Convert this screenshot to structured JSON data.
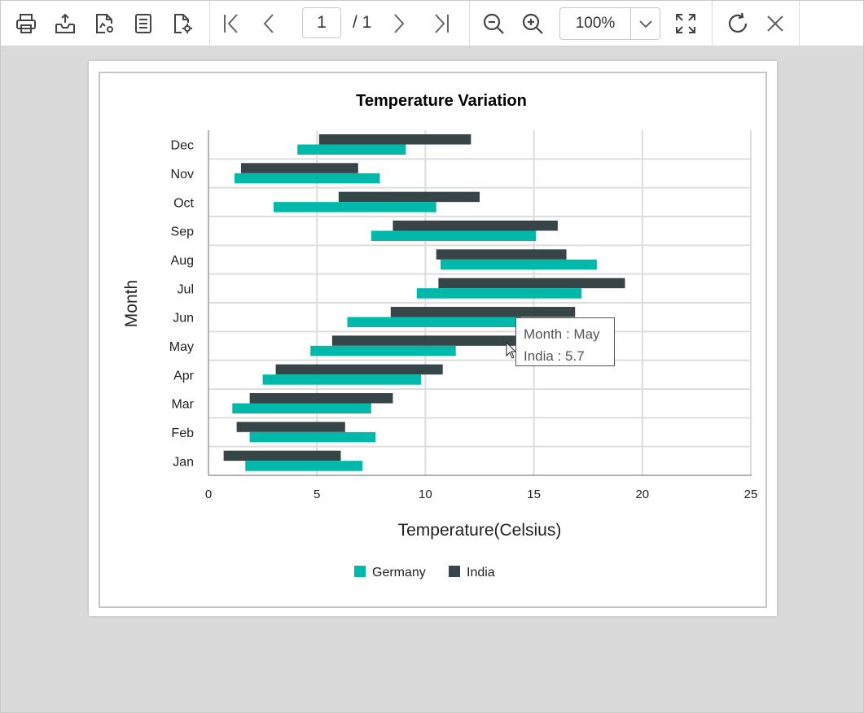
{
  "toolbar": {
    "print": "print-icon",
    "export": "export-icon",
    "parameters": "file-settings-icon",
    "document_map": "document-list-icon",
    "page_setup": "page-settings-icon",
    "first_page": "first-page-icon",
    "prev_page": "previous-page-icon",
    "current_page": "1",
    "total_pages": "/ 1",
    "next_page": "next-page-icon",
    "last_page": "last-page-icon",
    "zoom_out": "zoom-out-icon",
    "zoom_in": "zoom-in-icon",
    "zoom_value": "100%",
    "fit_page": "fit-page-icon",
    "refresh": "refresh-icon",
    "close": "close-icon"
  },
  "tooltip": {
    "line1": "Month : May",
    "line2": "India : 5.7"
  },
  "colors": {
    "germany": "#00b9aa",
    "india": "#374549",
    "grid": "#dddddd",
    "axis": "#9a9a9a"
  },
  "chart_data": {
    "type": "bar",
    "orientation": "horizontal",
    "subtype": "range",
    "title": "Temperature Variation",
    "xlabel": "Temperature(Celsius)",
    "ylabel": "Month",
    "xlim": [
      0,
      25
    ],
    "xticks": [
      0,
      5,
      10,
      15,
      20,
      25
    ],
    "categories": [
      "Jan",
      "Feb",
      "Mar",
      "Apr",
      "May",
      "Jun",
      "Jul",
      "Aug",
      "Sep",
      "Oct",
      "Nov",
      "Dec"
    ],
    "grid": true,
    "legend": "bottom-center",
    "series": [
      {
        "name": "Germany",
        "color": "#00b9aa",
        "low": [
          1.7,
          1.9,
          1.1,
          2.5,
          4.7,
          6.4,
          9.6,
          10.7,
          7.5,
          3.0,
          1.2,
          4.1
        ],
        "high": [
          7.1,
          7.7,
          7.5,
          9.8,
          11.4,
          14.4,
          17.2,
          17.9,
          15.1,
          10.5,
          7.9,
          9.1
        ]
      },
      {
        "name": "India",
        "color": "#374549",
        "low": [
          0.7,
          1.3,
          1.9,
          3.1,
          5.7,
          8.4,
          10.6,
          10.5,
          8.5,
          6.0,
          1.5,
          5.1
        ],
        "high": [
          6.1,
          6.3,
          8.5,
          10.8,
          14.5,
          16.9,
          19.2,
          16.5,
          16.1,
          12.5,
          6.9,
          12.1
        ]
      }
    ]
  }
}
